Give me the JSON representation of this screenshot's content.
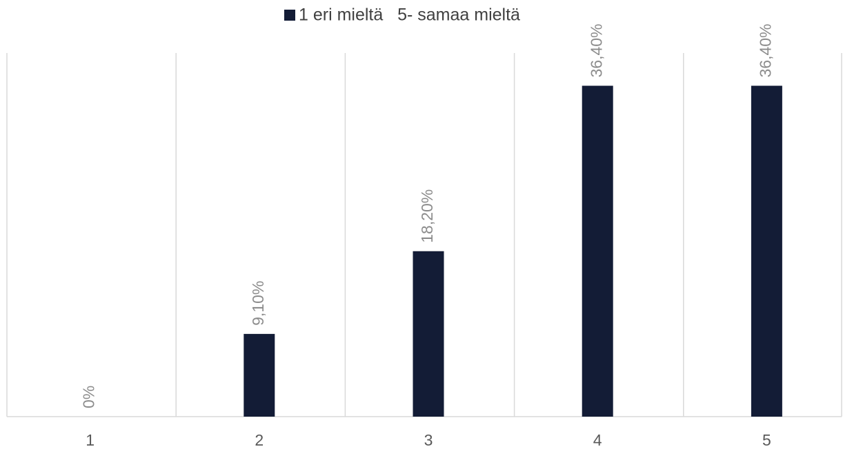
{
  "chart_data": {
    "type": "bar",
    "categories": [
      "1",
      "2",
      "3",
      "4",
      "5"
    ],
    "series": [
      {
        "name": "1 eri mieltä   5- samaa mieltä",
        "color": "#131c36",
        "values": [
          0,
          9.1,
          18.2,
          36.4,
          36.4
        ],
        "value_labels": [
          "0%",
          "9,10%",
          "18,20%",
          "36,40%",
          "36,40%"
        ]
      }
    ],
    "ylim": [
      0,
      40
    ],
    "legend": "top"
  }
}
